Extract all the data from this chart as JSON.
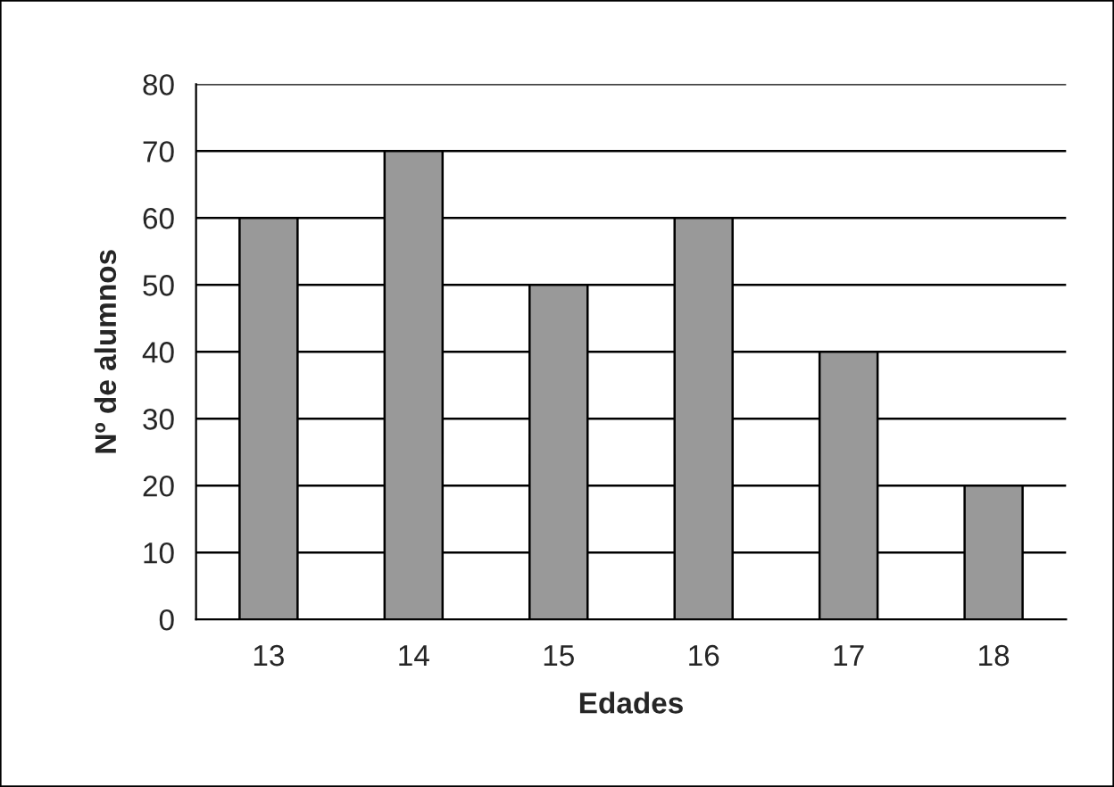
{
  "chart_data": {
    "type": "bar",
    "xlabel": "Edades",
    "ylabel": "Nº de alumnos",
    "categories": [
      "13",
      "14",
      "15",
      "16",
      "17",
      "18"
    ],
    "values": [
      60,
      70,
      50,
      60,
      40,
      20
    ],
    "color": "#999999",
    "ylim": [
      0,
      80
    ],
    "yticks": [
      0,
      10,
      20,
      30,
      40,
      50,
      60,
      70,
      80
    ],
    "grid": "y",
    "legend": false
  }
}
